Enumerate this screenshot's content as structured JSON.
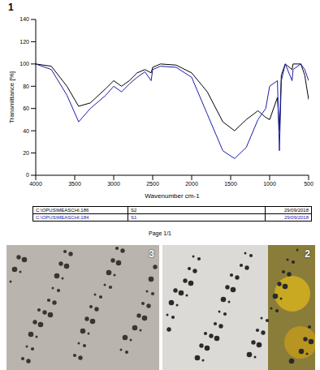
{
  "chart_data": {
    "type": "line",
    "panel_label": "1",
    "x_label": "Wavenumber cm-1",
    "y_label": "Transmittance [%]",
    "xlim": [
      4000,
      500
    ],
    "xticks": [
      4000,
      3500,
      3000,
      2500,
      2000,
      1500,
      1000,
      500
    ],
    "ylim": [
      0,
      140
    ],
    "yticks": [
      0,
      20,
      40,
      60,
      80,
      100,
      120,
      140
    ],
    "grid": false,
    "x": [
      4000,
      3800,
      3600,
      3450,
      3300,
      3100,
      3000,
      2900,
      2800,
      2700,
      2600,
      2520,
      2500,
      2400,
      2200,
      2000,
      1800,
      1600,
      1450,
      1300,
      1150,
      1050,
      1000,
      900,
      875,
      850,
      800,
      712,
      700,
      600,
      550,
      500
    ],
    "series": [
      {
        "name": "S2",
        "color": "#000000",
        "values": [
          100,
          98,
          80,
          62,
          65,
          78,
          85,
          80,
          85,
          92,
          95,
          92,
          97,
          100,
          99,
          92,
          75,
          48,
          40,
          50,
          58,
          52,
          50,
          70,
          40,
          90,
          100,
          95,
          100,
          100,
          90,
          68
        ]
      },
      {
        "name": "S1",
        "color": "#1c1ca8",
        "values": [
          100,
          95,
          72,
          48,
          60,
          72,
          80,
          75,
          82,
          88,
          93,
          85,
          95,
          98,
          97,
          88,
          55,
          22,
          15,
          25,
          50,
          60,
          80,
          85,
          22,
          85,
          100,
          85,
          95,
          100,
          95,
          85
        ]
      }
    ]
  },
  "legend_table": [
    {
      "file": "C:\\OPUS\\MEASCHI.186",
      "date": "29/09/2018"
    },
    {
      "file": "C:\\OPUS\\MEASCHI.184",
      "date": "29/09/2018"
    }
  ],
  "page": "Page 1/1",
  "photo_panels": [
    "3",
    "2"
  ]
}
